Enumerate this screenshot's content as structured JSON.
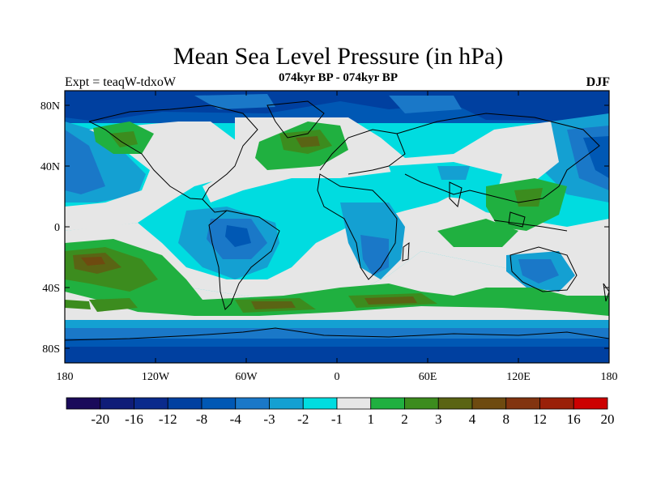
{
  "title": "Mean Sea Level Pressure (in hPa)",
  "subtitle": "074kyr BP - 074kyr BP",
  "left_label": "Expt = teaqW-tdxoW",
  "right_label": "DJF",
  "y_ticks": [
    "80N",
    "40N",
    "0",
    "40S",
    "80S"
  ],
  "x_ticks": [
    "180",
    "120W",
    "60W",
    "0",
    "60E",
    "120E",
    "180"
  ],
  "colorbar": {
    "colors": [
      "#1a0a5a",
      "#0f1d78",
      "#0a2a8c",
      "#0040a0",
      "#0058b4",
      "#1a78c8",
      "#14a0d2",
      "#00dce0",
      "#e6e6e6",
      "#20b040",
      "#3c8c1e",
      "#5a6414",
      "#6e4a10",
      "#823410",
      "#9a2008",
      "#cc0000"
    ],
    "labels": [
      "-20",
      "-16",
      "-12",
      "-8",
      "-4",
      "-3",
      "-2",
      "-1",
      "1",
      "2",
      "3",
      "4",
      "8",
      "12",
      "16",
      "20"
    ]
  },
  "map": {
    "projection": "cylindrical-equidistant",
    "lon_range": [
      -180,
      180
    ],
    "lat_range": [
      -90,
      90
    ],
    "coastlines": true
  }
}
